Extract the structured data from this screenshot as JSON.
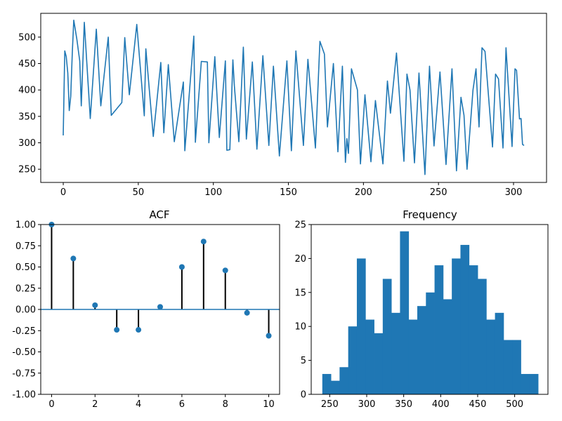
{
  "colors": {
    "series": "#1f77b4",
    "stem": "#000000",
    "frame": "#000000"
  },
  "chart_data": [
    {
      "type": "line",
      "title": "",
      "xlabel": "",
      "ylabel": "",
      "xlim": [
        -15,
        322
      ],
      "ylim": [
        225,
        545
      ],
      "xticks": [
        0,
        50,
        100,
        150,
        200,
        250,
        300
      ],
      "yticks": [
        250,
        300,
        350,
        400,
        450,
        500
      ],
      "grid": false,
      "key_points": [
        {
          "x": 0,
          "y": 314
        },
        {
          "x": 1,
          "y": 474
        },
        {
          "x": 2,
          "y": 463
        },
        {
          "x": 3,
          "y": 432
        },
        {
          "x": 4,
          "y": 361
        },
        {
          "x": 5,
          "y": 388
        },
        {
          "x": 6,
          "y": 470
        },
        {
          "x": 7,
          "y": 532
        },
        {
          "x": 9,
          "y": 497
        },
        {
          "x": 11,
          "y": 455
        },
        {
          "x": 12,
          "y": 370
        },
        {
          "x": 14,
          "y": 528
        },
        {
          "x": 18,
          "y": 346
        },
        {
          "x": 22,
          "y": 515
        },
        {
          "x": 25,
          "y": 370
        },
        {
          "x": 30,
          "y": 500
        },
        {
          "x": 32,
          "y": 352
        },
        {
          "x": 39,
          "y": 376
        },
        {
          "x": 41,
          "y": 499
        },
        {
          "x": 44,
          "y": 391
        },
        {
          "x": 49,
          "y": 524
        },
        {
          "x": 54,
          "y": 351
        },
        {
          "x": 55,
          "y": 478
        },
        {
          "x": 60,
          "y": 312
        },
        {
          "x": 65,
          "y": 452
        },
        {
          "x": 67,
          "y": 319
        },
        {
          "x": 70,
          "y": 448
        },
        {
          "x": 74,
          "y": 302
        },
        {
          "x": 80,
          "y": 415
        },
        {
          "x": 81,
          "y": 285
        },
        {
          "x": 87,
          "y": 502
        },
        {
          "x": 88,
          "y": 301
        },
        {
          "x": 92,
          "y": 454
        },
        {
          "x": 96,
          "y": 453
        },
        {
          "x": 97,
          "y": 300
        },
        {
          "x": 101,
          "y": 463
        },
        {
          "x": 104,
          "y": 310
        },
        {
          "x": 108,
          "y": 455
        },
        {
          "x": 109,
          "y": 286
        },
        {
          "x": 111,
          "y": 287
        },
        {
          "x": 113,
          "y": 457
        },
        {
          "x": 114,
          "y": 408
        },
        {
          "x": 117,
          "y": 302
        },
        {
          "x": 120,
          "y": 481
        },
        {
          "x": 122,
          "y": 307
        },
        {
          "x": 126,
          "y": 453
        },
        {
          "x": 129,
          "y": 288
        },
        {
          "x": 133,
          "y": 465
        },
        {
          "x": 137,
          "y": 295
        },
        {
          "x": 140,
          "y": 445
        },
        {
          "x": 144,
          "y": 275
        },
        {
          "x": 149,
          "y": 455
        },
        {
          "x": 152,
          "y": 285
        },
        {
          "x": 155,
          "y": 474
        },
        {
          "x": 160,
          "y": 295
        },
        {
          "x": 163,
          "y": 458
        },
        {
          "x": 168,
          "y": 290
        },
        {
          "x": 171,
          "y": 492
        },
        {
          "x": 174,
          "y": 468
        },
        {
          "x": 176,
          "y": 330
        },
        {
          "x": 180,
          "y": 450
        },
        {
          "x": 183,
          "y": 283
        },
        {
          "x": 186,
          "y": 445
        },
        {
          "x": 188,
          "y": 263
        },
        {
          "x": 189,
          "y": 308
        },
        {
          "x": 190,
          "y": 280
        },
        {
          "x": 192,
          "y": 440
        },
        {
          "x": 196,
          "y": 400
        },
        {
          "x": 198,
          "y": 260
        },
        {
          "x": 201,
          "y": 391
        },
        {
          "x": 205,
          "y": 264
        },
        {
          "x": 208,
          "y": 380
        },
        {
          "x": 213,
          "y": 260
        },
        {
          "x": 216,
          "y": 417
        },
        {
          "x": 218,
          "y": 356
        },
        {
          "x": 222,
          "y": 470
        },
        {
          "x": 227,
          "y": 265
        },
        {
          "x": 229,
          "y": 430
        },
        {
          "x": 231,
          "y": 400
        },
        {
          "x": 234,
          "y": 262
        },
        {
          "x": 237,
          "y": 432
        },
        {
          "x": 241,
          "y": 240
        },
        {
          "x": 244,
          "y": 445
        },
        {
          "x": 247,
          "y": 294
        },
        {
          "x": 251,
          "y": 434
        },
        {
          "x": 255,
          "y": 259
        },
        {
          "x": 259,
          "y": 440
        },
        {
          "x": 262,
          "y": 247
        },
        {
          "x": 265,
          "y": 386
        },
        {
          "x": 267,
          "y": 352
        },
        {
          "x": 269,
          "y": 250
        },
        {
          "x": 273,
          "y": 400
        },
        {
          "x": 275,
          "y": 440
        },
        {
          "x": 277,
          "y": 330
        },
        {
          "x": 279,
          "y": 480
        },
        {
          "x": 281,
          "y": 473
        },
        {
          "x": 286,
          "y": 292
        },
        {
          "x": 288,
          "y": 430
        },
        {
          "x": 290,
          "y": 421
        },
        {
          "x": 293,
          "y": 290
        },
        {
          "x": 295,
          "y": 480
        },
        {
          "x": 299,
          "y": 293
        },
        {
          "x": 301,
          "y": 440
        },
        {
          "x": 302,
          "y": 437
        },
        {
          "x": 304,
          "y": 345
        },
        {
          "x": 305,
          "y": 346
        },
        {
          "x": 306,
          "y": 297
        },
        {
          "x": 307,
          "y": 295
        }
      ]
    },
    {
      "type": "stem",
      "title": "ACF",
      "xlabel": "",
      "ylabel": "",
      "xlim": [
        -0.5,
        10.5
      ],
      "ylim": [
        -1.0,
        1.0
      ],
      "xticks": [
        0,
        2,
        4,
        6,
        8,
        10
      ],
      "yticks": [
        "1.00",
        "0.75",
        "0.50",
        "0.25",
        "0.00",
        "-0.25",
        "-0.50",
        "-0.75",
        "-1.00"
      ],
      "lags": [
        0,
        1,
        2,
        3,
        4,
        5,
        6,
        7,
        8,
        9,
        10
      ],
      "values": [
        1.0,
        0.6,
        0.05,
        -0.24,
        -0.24,
        0.03,
        0.5,
        0.8,
        0.46,
        -0.04,
        -0.31
      ]
    },
    {
      "type": "histogram",
      "title": "Frequency",
      "xlabel": "",
      "ylabel": "",
      "xlim": [
        225,
        545
      ],
      "ylim": [
        0,
        25
      ],
      "xticks": [
        250,
        300,
        350,
        400,
        450,
        500
      ],
      "yticks": [
        0,
        5,
        10,
        15,
        20,
        25
      ],
      "bin_start": 240,
      "bin_width": 11.67,
      "counts": [
        3,
        2,
        4,
        10,
        20,
        11,
        9,
        17,
        12,
        24,
        11,
        13,
        15,
        19,
        14,
        20,
        22,
        19,
        17,
        11,
        12,
        8,
        8,
        3,
        3
      ]
    }
  ]
}
